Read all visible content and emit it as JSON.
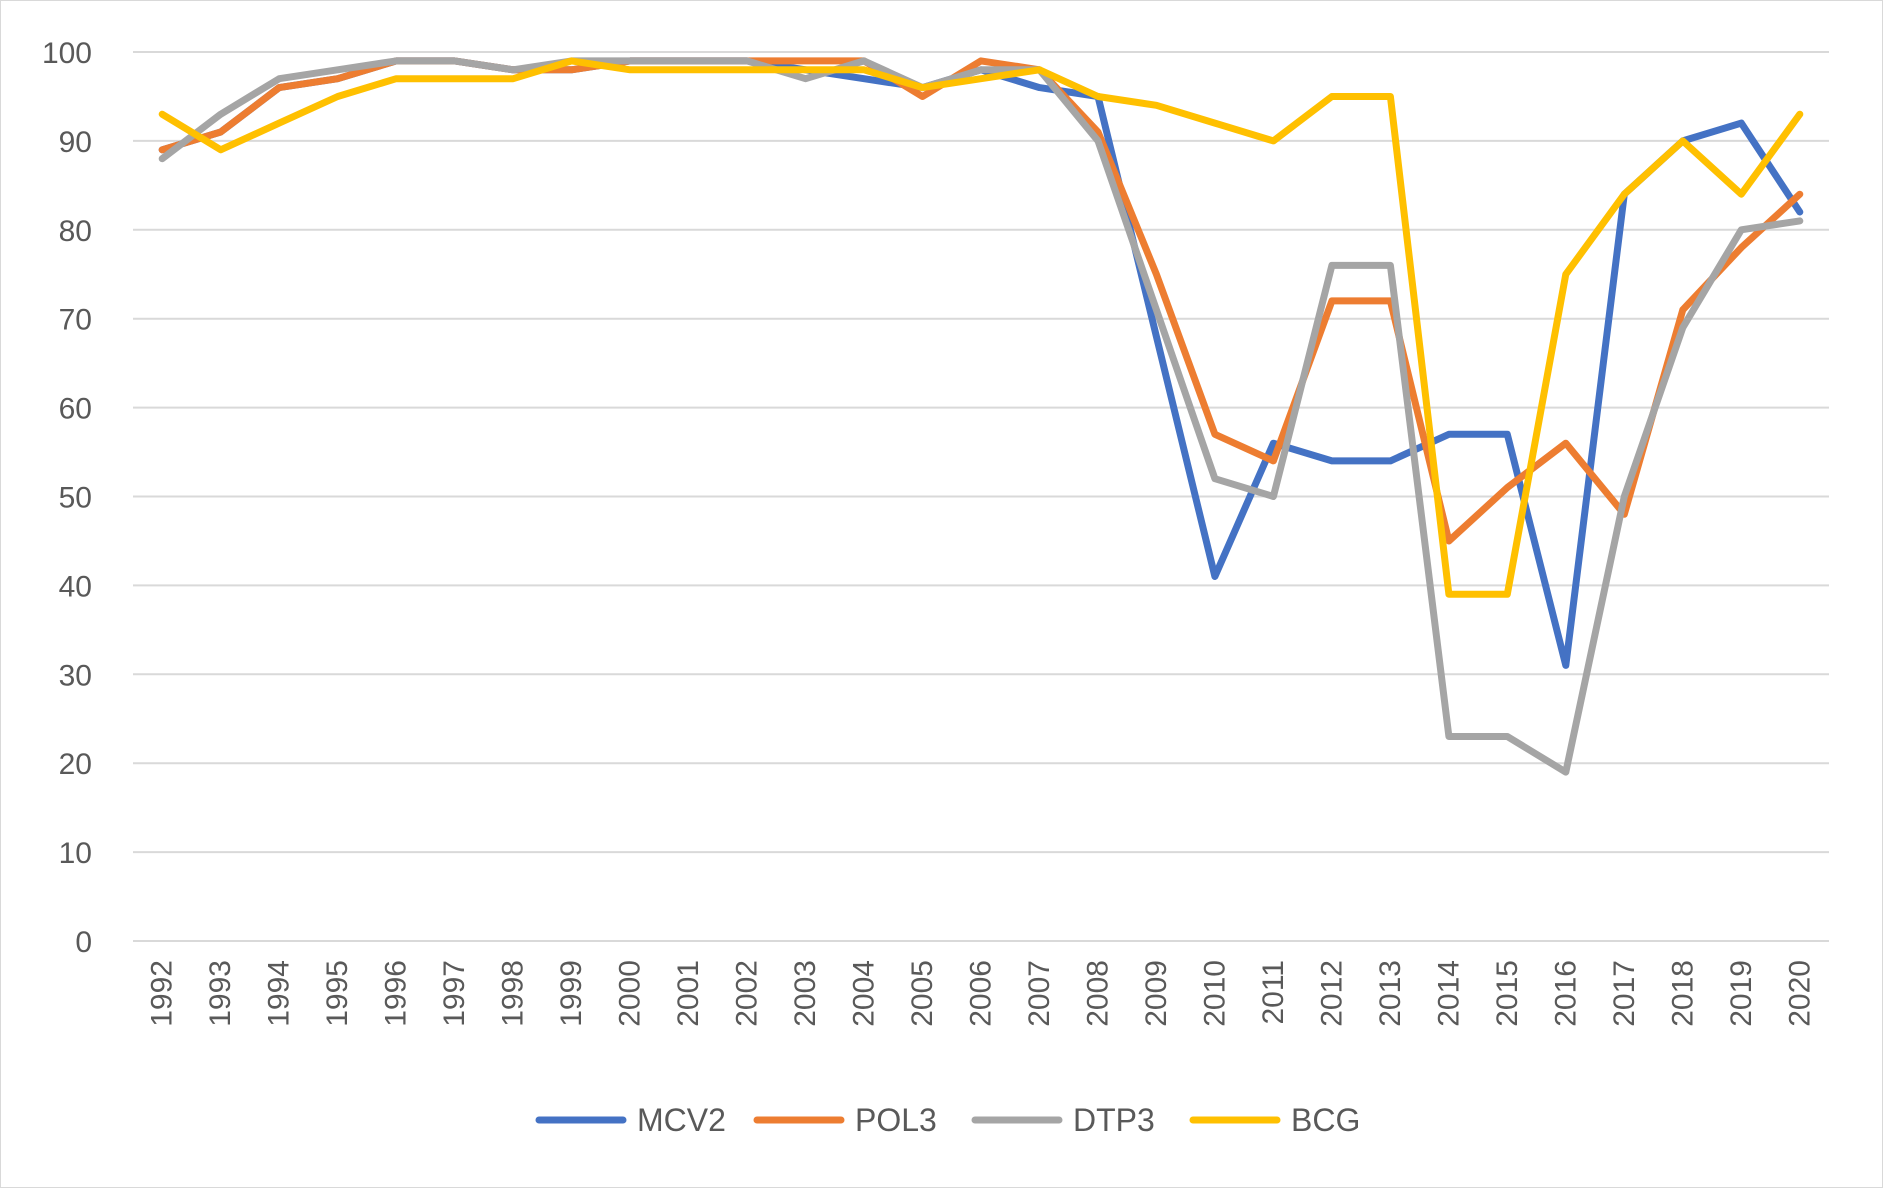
{
  "chart_data": {
    "type": "line",
    "title": "",
    "xlabel": "",
    "ylabel": "",
    "ylim": [
      0,
      100
    ],
    "yticks": [
      0,
      10,
      20,
      30,
      40,
      50,
      60,
      70,
      80,
      90,
      100
    ],
    "grid": "horizontal",
    "legend_position": "bottom",
    "categories": [
      "1992",
      "1993",
      "1994",
      "1995",
      "1996",
      "1997",
      "1998",
      "1999",
      "2000",
      "2001",
      "2002",
      "2003",
      "2004",
      "2005",
      "2006",
      "2007",
      "2008",
      "2009",
      "2010",
      "2011",
      "2012",
      "2013",
      "2014",
      "2015",
      "2016",
      "2017",
      "2018",
      "2019",
      "2020"
    ],
    "series": [
      {
        "name": "MCV2",
        "color": "#4472c4",
        "values": [
          89,
          91,
          96,
          97,
          99,
          99,
          98,
          98,
          99,
          99,
          99,
          98,
          97,
          96,
          98,
          96,
          95,
          68,
          41,
          56,
          54,
          54,
          57,
          57,
          31,
          84,
          90,
          92,
          82
        ]
      },
      {
        "name": "POL3",
        "color": "#ed7d31",
        "values": [
          89,
          91,
          96,
          97,
          99,
          99,
          98,
          98,
          99,
          99,
          99,
          99,
          99,
          95,
          99,
          98,
          91,
          75,
          57,
          54,
          72,
          72,
          45,
          51,
          56,
          48,
          71,
          78,
          84
        ]
      },
      {
        "name": "DTP3",
        "color": "#a5a5a5",
        "values": [
          88,
          93,
          97,
          98,
          99,
          99,
          98,
          99,
          99,
          99,
          99,
          97,
          99,
          96,
          98,
          98,
          90,
          71,
          52,
          50,
          76,
          76,
          23,
          23,
          19,
          50,
          69,
          80,
          81
        ]
      },
      {
        "name": "BCG",
        "color": "#ffc000",
        "values": [
          93,
          89,
          92,
          95,
          97,
          97,
          97,
          99,
          98,
          98,
          98,
          98,
          98,
          96,
          97,
          98,
          95,
          94,
          92,
          90,
          95,
          95,
          39,
          39,
          75,
          84,
          90,
          84,
          93
        ]
      }
    ]
  }
}
